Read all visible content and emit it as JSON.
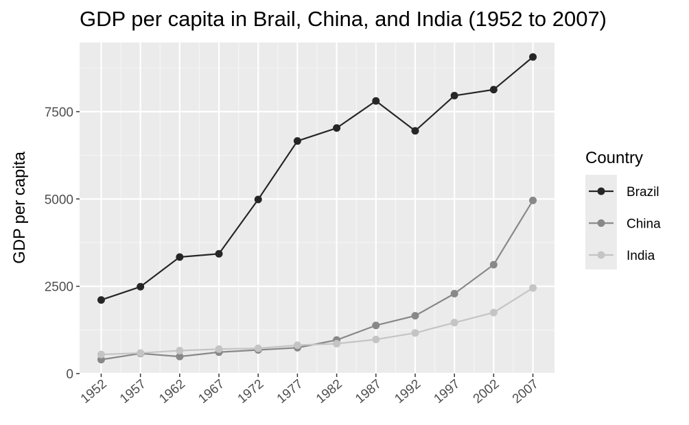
{
  "chart_data": {
    "type": "line",
    "title": "GDP per capita in Brail, China, and India (1952 to 2007)",
    "xlabel": "",
    "ylabel": "GDP per capita",
    "x": [
      "1952",
      "1957",
      "1962",
      "1967",
      "1972",
      "1977",
      "1982",
      "1987",
      "1992",
      "1997",
      "2002",
      "2007"
    ],
    "xlim": [
      1949.25,
      2009.75
    ],
    "ylim": [
      0,
      9480
    ],
    "yticks": [
      0,
      2500,
      5000,
      7500
    ],
    "grid": true,
    "legend": {
      "title": "Country",
      "position": "right"
    },
    "series": [
      {
        "name": "Brazil",
        "color": "#262626",
        "values": [
          2108,
          2487,
          3337,
          3430,
          4986,
          6660,
          7031,
          7807,
          6950,
          7958,
          8131,
          9066
        ]
      },
      {
        "name": "China",
        "color": "#888888",
        "values": [
          400,
          576,
          488,
          613,
          677,
          741,
          962,
          1379,
          1656,
          2289,
          3119,
          4959
        ]
      },
      {
        "name": "India",
        "color": "#c4c4c4",
        "values": [
          547,
          590,
          658,
          701,
          724,
          813,
          856,
          977,
          1164,
          1459,
          1747,
          2452
        ]
      }
    ]
  }
}
